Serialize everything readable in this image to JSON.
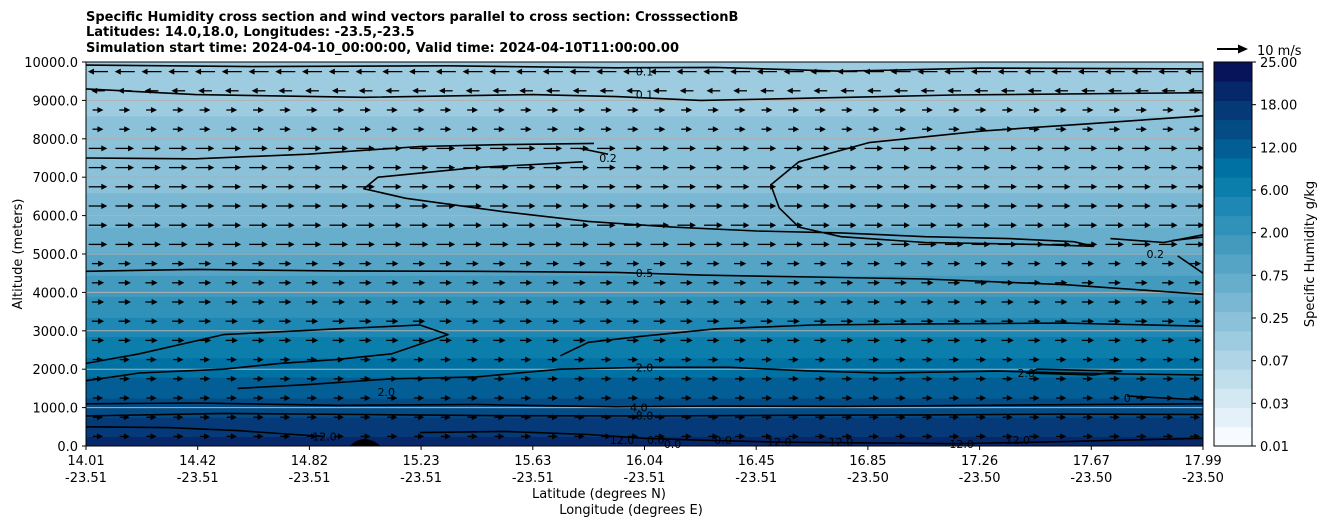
{
  "chart_data": {
    "type": "contour",
    "title_lines": [
      "Specific Humidity cross section and wind vectors parallel to cross section: CrosssectionB",
      "Latitudes: 14.0,18.0, Longitudes: -23.5,-23.5",
      "Simulation start time: 2024-04-10_00:00:00, Valid time: 2024-04-10T11:00:00.00"
    ],
    "xlabel_lines": [
      "Latitude (degrees N)",
      "Longitude (degrees E)"
    ],
    "ylabel": "Altitude (meters)",
    "ylim": [
      0,
      10000
    ],
    "grid": "horizontal",
    "x_ticks": [
      {
        "lat": "14.01",
        "lon": "-23.51"
      },
      {
        "lat": "14.42",
        "lon": "-23.51"
      },
      {
        "lat": "14.82",
        "lon": "-23.51"
      },
      {
        "lat": "15.23",
        "lon": "-23.51"
      },
      {
        "lat": "15.63",
        "lon": "-23.51"
      },
      {
        "lat": "16.04",
        "lon": "-23.51"
      },
      {
        "lat": "16.45",
        "lon": "-23.51"
      },
      {
        "lat": "16.85",
        "lon": "-23.50"
      },
      {
        "lat": "17.26",
        "lon": "-23.50"
      },
      {
        "lat": "17.67",
        "lon": "-23.50"
      },
      {
        "lat": "17.99",
        "lon": "-23.50"
      }
    ],
    "y_ticks": [
      "0.0",
      "1000.0",
      "2000.0",
      "3000.0",
      "4000.0",
      "5000.0",
      "6000.0",
      "7000.0",
      "8000.0",
      "9000.0",
      "10000.0"
    ],
    "colorbar": {
      "label": "Specific Humidity g/kg",
      "ticks": [
        "0.01",
        "0.03",
        "0.07",
        "0.25",
        "0.75",
        "2.00",
        "6.00",
        "12.00",
        "18.00",
        "25.00"
      ],
      "n_levels": 20,
      "color_low": "#f7fbff",
      "color_mid": "#0077a8",
      "color_high": "#08145a"
    },
    "quiver_key": "10 m/s",
    "contour_labels": [
      {
        "text": "0.1",
        "lat": 16.0,
        "alt": 9750
      },
      {
        "text": "0.1",
        "lat": 16.0,
        "alt": 9150
      },
      {
        "text": "0.2",
        "lat": 15.87,
        "alt": 7500
      },
      {
        "text": "0.2",
        "lat": 17.82,
        "alt": 5000
      },
      {
        "text": "0.5",
        "lat": 16.0,
        "alt": 4500
      },
      {
        "text": "2.0",
        "lat": 16.0,
        "alt": 2050
      },
      {
        "text": "2.0",
        "lat": 17.36,
        "alt": 1900
      },
      {
        "text": "2.0",
        "lat": 15.08,
        "alt": 1400
      },
      {
        "text": "0",
        "lat": 17.72,
        "alt": 1250
      },
      {
        "text": "4.0",
        "lat": 15.98,
        "alt": 1000
      },
      {
        "text": "8.0",
        "lat": 16.0,
        "alt": 800
      },
      {
        "text": "12.0",
        "lat": 14.86,
        "alt": 250
      },
      {
        "text": "12.0",
        "lat": 15.92,
        "alt": 150
      },
      {
        "text": "12.0",
        "lat": 16.48,
        "alt": 100
      },
      {
        "text": "12.0",
        "lat": 16.7,
        "alt": 100
      },
      {
        "text": "12.0",
        "lat": 17.13,
        "alt": 50
      },
      {
        "text": "12.0",
        "lat": 17.33,
        "alt": 150
      },
      {
        "text": "0.0",
        "lat": 16.04,
        "alt": 150
      },
      {
        "text": "0.0",
        "lat": 16.1,
        "alt": 50
      },
      {
        "text": "0.0",
        "lat": 16.28,
        "alt": 150
      }
    ],
    "isolines": [
      {
        "level": 0.1,
        "points": [
          [
            14.01,
            9920
          ],
          [
            14.6,
            9880
          ],
          [
            15.3,
            9900
          ],
          [
            15.9,
            9850
          ],
          [
            16.25,
            9860
          ],
          [
            16.7,
            9760
          ],
          [
            17.2,
            9840
          ],
          [
            17.99,
            9820
          ]
        ]
      },
      {
        "level": 0.1,
        "points": [
          [
            14.01,
            9300
          ],
          [
            14.4,
            9150
          ],
          [
            15.0,
            9080
          ],
          [
            15.6,
            9150
          ],
          [
            15.9,
            9100
          ],
          [
            16.2,
            9000
          ],
          [
            16.6,
            9060
          ],
          [
            17.1,
            9140
          ],
          [
            17.99,
            9200
          ]
        ]
      },
      {
        "level": 0.2,
        "points": [
          [
            14.01,
            7500
          ],
          [
            14.4,
            7480
          ],
          [
            14.8,
            7600
          ],
          [
            15.2,
            7800
          ],
          [
            15.5,
            7850
          ],
          [
            15.82,
            7880
          ]
        ]
      },
      {
        "level": 0.2,
        "points": [
          [
            15.87,
            7600
          ],
          [
            15.77,
            7750
          ]
        ]
      },
      {
        "level": 0.2,
        "points": [
          [
            15.78,
            7400
          ],
          [
            15.4,
            7250
          ],
          [
            15.05,
            7000
          ],
          [
            15.0,
            6700
          ],
          [
            15.15,
            6450
          ],
          [
            15.5,
            6100
          ],
          [
            15.8,
            5850
          ],
          [
            16.1,
            5700
          ],
          [
            16.4,
            5600
          ],
          [
            16.7,
            5550
          ],
          [
            17.0,
            5450
          ],
          [
            17.3,
            5400
          ],
          [
            17.53,
            5320
          ],
          [
            17.6,
            5200
          ],
          [
            17.4,
            5250
          ],
          [
            17.0,
            5300
          ],
          [
            16.7,
            5450
          ],
          [
            16.55,
            5700
          ],
          [
            16.48,
            6200
          ],
          [
            16.45,
            6800
          ],
          [
            16.55,
            7400
          ],
          [
            16.8,
            7900
          ],
          [
            17.2,
            8200
          ],
          [
            17.6,
            8400
          ],
          [
            17.99,
            8600
          ]
        ]
      },
      {
        "level": 0.2,
        "points": [
          [
            17.88,
            5350
          ],
          [
            18.0,
            5450
          ]
        ]
      },
      {
        "level": 0.2,
        "points": [
          [
            17.66,
            5400
          ],
          [
            17.85,
            5300
          ],
          [
            17.99,
            5500
          ]
        ]
      },
      {
        "level": 0.5,
        "points": [
          [
            14.01,
            4550
          ],
          [
            14.4,
            4600
          ],
          [
            14.9,
            4560
          ],
          [
            15.4,
            4550
          ],
          [
            15.9,
            4520
          ],
          [
            16.2,
            4450
          ],
          [
            16.6,
            4400
          ],
          [
            17.0,
            4350
          ],
          [
            17.5,
            4200
          ],
          [
            17.99,
            3950
          ]
        ]
      },
      {
        "level": 0.5,
        "points": [
          [
            17.9,
            4950
          ],
          [
            17.99,
            4500
          ]
        ]
      },
      {
        "level": 1.0,
        "points": [
          [
            14.01,
            2150
          ],
          [
            14.2,
            2400
          ],
          [
            14.5,
            2900
          ],
          [
            14.9,
            3050
          ],
          [
            15.2,
            3150
          ],
          [
            15.3,
            2900
          ],
          [
            15.1,
            2400
          ],
          [
            14.9,
            2250
          ],
          [
            14.7,
            2150
          ],
          [
            14.5,
            2000
          ],
          [
            14.2,
            1900
          ],
          [
            14.01,
            1700
          ]
        ]
      },
      {
        "level": 1.0,
        "points": [
          [
            15.7,
            2350
          ],
          [
            15.8,
            2700
          ],
          [
            15.98,
            2850
          ],
          [
            16.25,
            3050
          ],
          [
            16.6,
            3150
          ],
          [
            17.0,
            3180
          ],
          [
            17.5,
            3200
          ],
          [
            17.99,
            3120
          ]
        ]
      },
      {
        "level": 2.0,
        "points": [
          [
            14.55,
            1500
          ],
          [
            14.8,
            1600
          ],
          [
            15.1,
            1750
          ],
          [
            15.4,
            1800
          ],
          [
            15.7,
            2000
          ],
          [
            16.0,
            2050
          ],
          [
            16.3,
            2050
          ],
          [
            16.6,
            1950
          ],
          [
            16.85,
            1900
          ],
          [
            17.26,
            1950
          ],
          [
            17.5,
            1900
          ],
          [
            17.99,
            1850
          ]
        ]
      },
      {
        "level": 2.0,
        "points": [
          [
            17.36,
            1900
          ],
          [
            17.6,
            1850
          ],
          [
            17.7,
            1950
          ],
          [
            17.4,
            2000
          ],
          [
            17.36,
            1900
          ]
        ]
      },
      {
        "level": 4.0,
        "points": [
          [
            14.01,
            1100
          ],
          [
            14.4,
            1120
          ],
          [
            14.9,
            1060
          ],
          [
            15.4,
            1080
          ],
          [
            15.9,
            1020
          ],
          [
            16.2,
            1040
          ],
          [
            16.7,
            1030
          ],
          [
            17.2,
            1060
          ],
          [
            17.6,
            1080
          ],
          [
            17.99,
            1100
          ]
        ]
      },
      {
        "level": 4.0,
        "points": [
          [
            17.72,
            1300
          ],
          [
            17.85,
            1250
          ],
          [
            17.99,
            1200
          ]
        ]
      },
      {
        "level": 8.0,
        "points": [
          [
            14.01,
            780
          ],
          [
            14.5,
            850
          ],
          [
            15.0,
            820
          ],
          [
            15.5,
            790
          ],
          [
            16.0,
            780
          ],
          [
            16.5,
            800
          ],
          [
            17.0,
            810
          ],
          [
            17.5,
            830
          ],
          [
            17.99,
            820
          ]
        ]
      },
      {
        "level": 12.0,
        "points": [
          [
            14.01,
            500
          ],
          [
            14.3,
            480
          ],
          [
            14.55,
            400
          ],
          [
            14.75,
            300
          ],
          [
            14.86,
            250
          ]
        ]
      },
      {
        "level": 12.0,
        "points": [
          [
            15.2,
            350
          ],
          [
            15.5,
            380
          ],
          [
            15.8,
            300
          ],
          [
            16.0,
            200
          ],
          [
            16.2,
            150
          ],
          [
            16.5,
            100
          ],
          [
            16.8,
            80
          ],
          [
            17.1,
            60
          ],
          [
            17.4,
            100
          ],
          [
            17.7,
            150
          ],
          [
            17.99,
            200
          ]
        ]
      }
    ]
  }
}
